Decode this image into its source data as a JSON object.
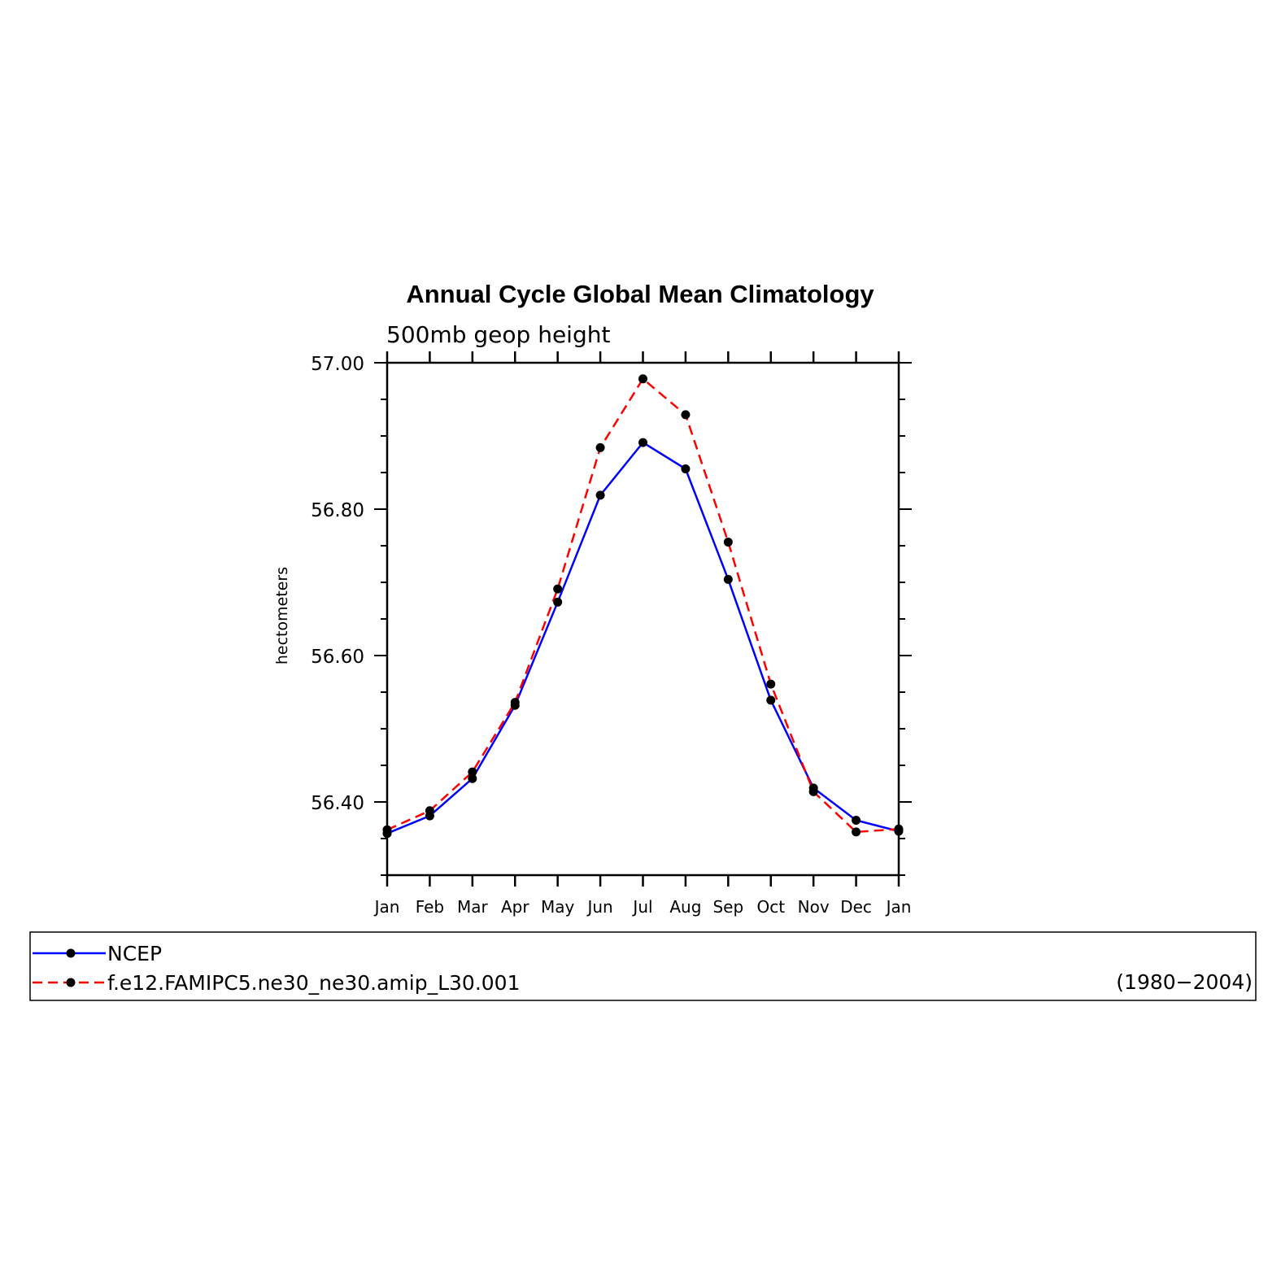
{
  "chart_data": {
    "type": "line",
    "title": "Annual Cycle Global Mean Climatology",
    "subtitle": "500mb geop height",
    "ylabel": "hectometers",
    "xlabel": "",
    "categories": [
      "Jan",
      "Feb",
      "Mar",
      "Apr",
      "May",
      "Jun",
      "Jul",
      "Aug",
      "Sep",
      "Oct",
      "Nov",
      "Dec",
      "Jan"
    ],
    "ylim": [
      56.3,
      57.0
    ],
    "yticks_major": [
      "56.40",
      "56.60",
      "56.80",
      "57.00"
    ],
    "grid": false,
    "legend_position": "bottom",
    "series": [
      {
        "name": "NCEP",
        "color": "#0000ff",
        "line_style": "solid",
        "values": [
          56.357,
          56.381,
          56.432,
          56.532,
          56.673,
          56.819,
          56.891,
          56.855,
          56.704,
          56.539,
          56.419,
          56.375,
          56.36
        ]
      },
      {
        "name": "f.e12.FAMIPC5.ne30_ne30.amip_L30.001",
        "color": "#ff0000",
        "line_style": "dashed",
        "values": [
          56.362,
          56.388,
          56.441,
          56.536,
          56.691,
          56.884,
          56.978,
          56.929,
          56.755,
          56.561,
          56.414,
          56.359,
          56.363
        ]
      }
    ],
    "legend_note": "(1980−2004)"
  }
}
